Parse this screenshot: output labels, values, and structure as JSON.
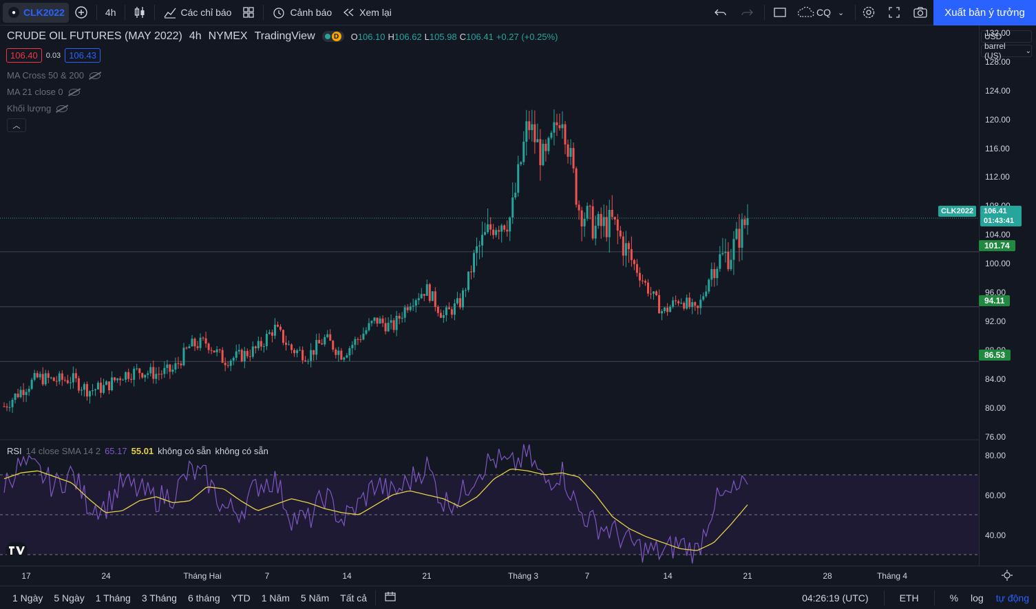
{
  "toolbar": {
    "symbol": "CLK2022",
    "interval": "4h",
    "indicators_label": "Các chỉ báo",
    "alerts_label": "Cảnh báo",
    "replay_label": "Xem lại",
    "compare_label": "CQ",
    "publish_label": "Xuất bản ý tưởng"
  },
  "legend": {
    "title": "CRUDE OIL FUTURES (MAY 2022)",
    "interval": "4h",
    "exchange": "NYMEX",
    "source": "TradingView",
    "delay_badge": "D",
    "open_key": "O",
    "open": "106.10",
    "high_key": "H",
    "high": "106.62",
    "low_key": "L",
    "low": "105.98",
    "close_key": "C",
    "close": "106.41",
    "change": "+0.27 (+0.25%)",
    "bid": "106.40",
    "spread": "0.03",
    "ask": "106.43"
  },
  "indicators": [
    {
      "label": "MA Cross 50 & 200"
    },
    {
      "label": "MA 21 close 0"
    },
    {
      "label": "Khối lượng"
    }
  ],
  "price_axis": {
    "currency": "USD",
    "unit": "barrel (US)",
    "ticks": [
      "132.00",
      "128.00",
      "124.00",
      "120.00",
      "116.00",
      "112.00",
      "108.00",
      "104.00",
      "100.00",
      "96.00",
      "92.00",
      "88.00",
      "84.00",
      "80.00",
      "76.00"
    ],
    "last_symbol": "CLK2022",
    "last_price": "106.41",
    "countdown": "01:43:41",
    "levels": [
      "101.74",
      "94.11",
      "86.53"
    ],
    "colors": {
      "up": "#26a69a",
      "down": "#ef5350",
      "level_label": "#1f8a3f"
    }
  },
  "rsi": {
    "name": "RSI",
    "params": "14 close SMA 14 2",
    "value": "65.17",
    "ma_value": "55.01",
    "na1": "không có sẵn",
    "na2": "không có sẵn",
    "ticks": [
      "80.00",
      "60.00",
      "40.00"
    ],
    "colors": {
      "rsi": "#7e57c2",
      "ma": "#e5d146",
      "band": "#1e1a33"
    }
  },
  "time_axis": {
    "ticks": [
      "17",
      "24",
      "Tháng Hai",
      "7",
      "14",
      "21",
      "Tháng 3",
      "7",
      "14",
      "21",
      "28",
      "Tháng 4"
    ]
  },
  "bottom": {
    "ranges": [
      "1 Ngày",
      "5 Ngày",
      "1 Tháng",
      "3 Tháng",
      "6 tháng",
      "YTD",
      "1 Năm",
      "5 Năm",
      "Tất cả"
    ],
    "clock": "04:26:19 (UTC)",
    "session": "ETH",
    "percent": "%",
    "log": "log",
    "auto": "tự động"
  },
  "chart_data": {
    "type": "candlestick",
    "title": "CRUDE OIL FUTURES (MAY 2022)",
    "x": [
      "17",
      "24",
      "Tháng Hai",
      "7",
      "14",
      "21",
      "Tháng 3",
      "7",
      "14",
      "21",
      "28",
      "Tháng 4"
    ],
    "ylim": [
      74,
      133
    ],
    "close_path": [
      80.3,
      82.5,
      84.3,
      83.9,
      84.1,
      82.5,
      83.0,
      84.7,
      85.2,
      84.8,
      85.3,
      88.7,
      89.2,
      86.7,
      87.3,
      88.3,
      91.2,
      88.2,
      87.4,
      89.7,
      87.5,
      89.8,
      92.3,
      91.2,
      94.9,
      96.6,
      92.8,
      94.7,
      101.8,
      105.8,
      106.5,
      119.7,
      114.0,
      121.6,
      108.0,
      105.0,
      105.8,
      101.1,
      97.0,
      93.3,
      95.3,
      93.2,
      100.2,
      101.6,
      106.41
    ],
    "last_price": 106.41,
    "levels": [
      101.74,
      94.11,
      86.53
    ],
    "rsi": {
      "ylim": [
        26,
        88
      ],
      "bands": [
        70,
        50,
        30
      ],
      "rsi_path": [
        66,
        75,
        72,
        64,
        71,
        55,
        54,
        66,
        62,
        58,
        60,
        72,
        68,
        53,
        52,
        65,
        68,
        49,
        47,
        60,
        47,
        55,
        66,
        60,
        67,
        75,
        56,
        59,
        72,
        78,
        74,
        80,
        66,
        72,
        52,
        45,
        42,
        36,
        32,
        31,
        36,
        31,
        56,
        60,
        65.17
      ],
      "ma_path": [
        68,
        71,
        72,
        69,
        66,
        58,
        51,
        52,
        57,
        59,
        56,
        57,
        64,
        63,
        57,
        52,
        55,
        58,
        56,
        53,
        51,
        50,
        55,
        60,
        62,
        60,
        58,
        54,
        59,
        68,
        73,
        72,
        70,
        71,
        69,
        60,
        49,
        43,
        39,
        36,
        33,
        32,
        36,
        45,
        55.01
      ]
    }
  }
}
